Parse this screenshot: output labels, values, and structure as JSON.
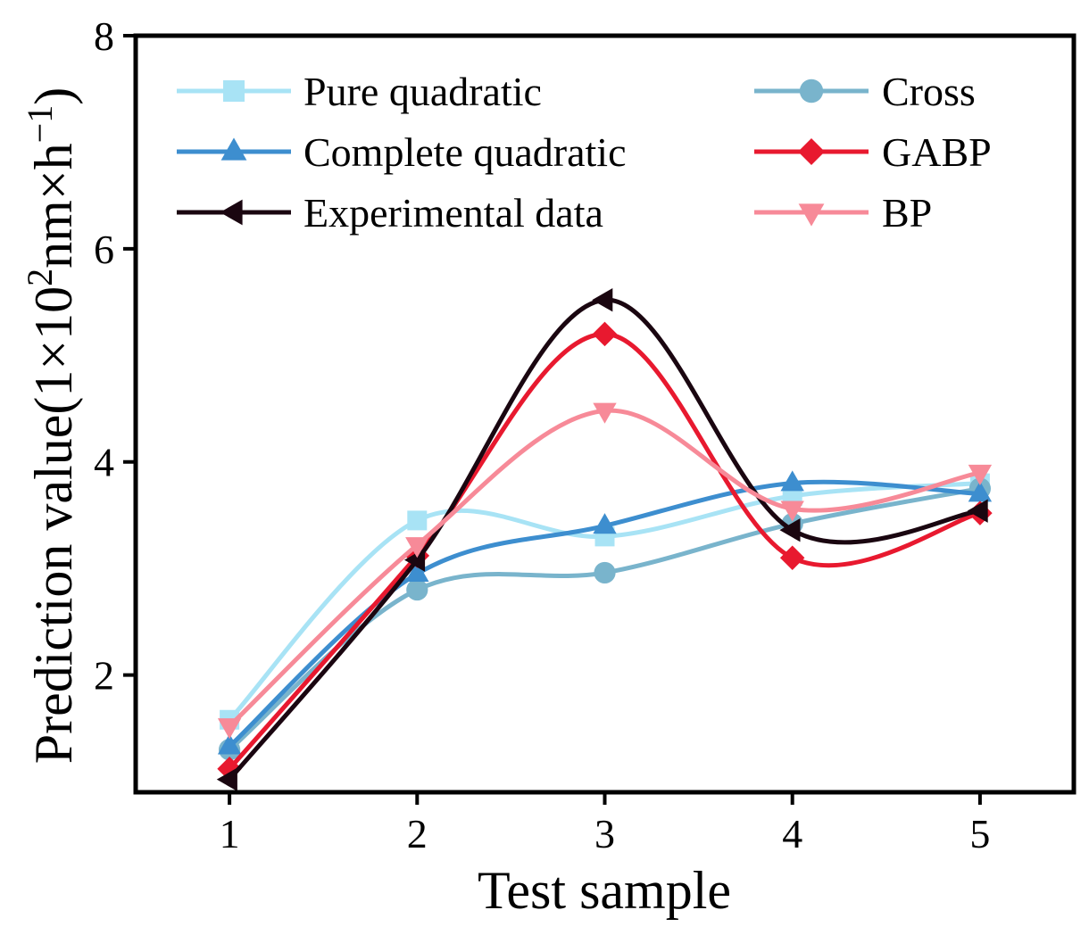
{
  "chart_data": {
    "type": "line",
    "smooth": true,
    "x": [
      1,
      2,
      3,
      4,
      5
    ],
    "xlabel": "Test sample",
    "ylabel": {
      "prefix": "Prediction value(1×10",
      "sup1": "2",
      "mid": "nm×h",
      "sup2": "−1",
      "suffix": ")"
    },
    "xlim": [
      0.5,
      5.5
    ],
    "ylim": [
      0.9,
      8
    ],
    "yticks": [
      2,
      4,
      6,
      8
    ],
    "xticks": [
      1,
      2,
      3,
      4,
      5
    ],
    "grid": false,
    "legend_position": "top",
    "series": [
      {
        "name": "Pure quadratic",
        "color": "#a8e3f5",
        "marker": "square",
        "values": [
          1.58,
          3.45,
          3.3,
          3.68,
          3.8
        ]
      },
      {
        "name": "Cross",
        "color": "#79b4cc",
        "marker": "circle",
        "values": [
          1.3,
          2.8,
          2.96,
          3.42,
          3.75
        ]
      },
      {
        "name": "Complete quadratic",
        "color": "#3d8ecf",
        "marker": "triangle-up",
        "values": [
          1.33,
          2.95,
          3.4,
          3.8,
          3.7
        ]
      },
      {
        "name": "GABP",
        "color": "#e8192f",
        "marker": "diamond",
        "values": [
          1.12,
          3.12,
          5.2,
          3.1,
          3.52
        ]
      },
      {
        "name": "Experimental data",
        "color": "#1a0610",
        "marker": "triangle-left",
        "values": [
          1.02,
          3.08,
          5.52,
          3.36,
          3.54
        ]
      },
      {
        "name": "BP",
        "color": "#f78a98",
        "marker": "triangle-down",
        "values": [
          1.52,
          3.22,
          4.48,
          3.56,
          3.9
        ]
      }
    ]
  }
}
